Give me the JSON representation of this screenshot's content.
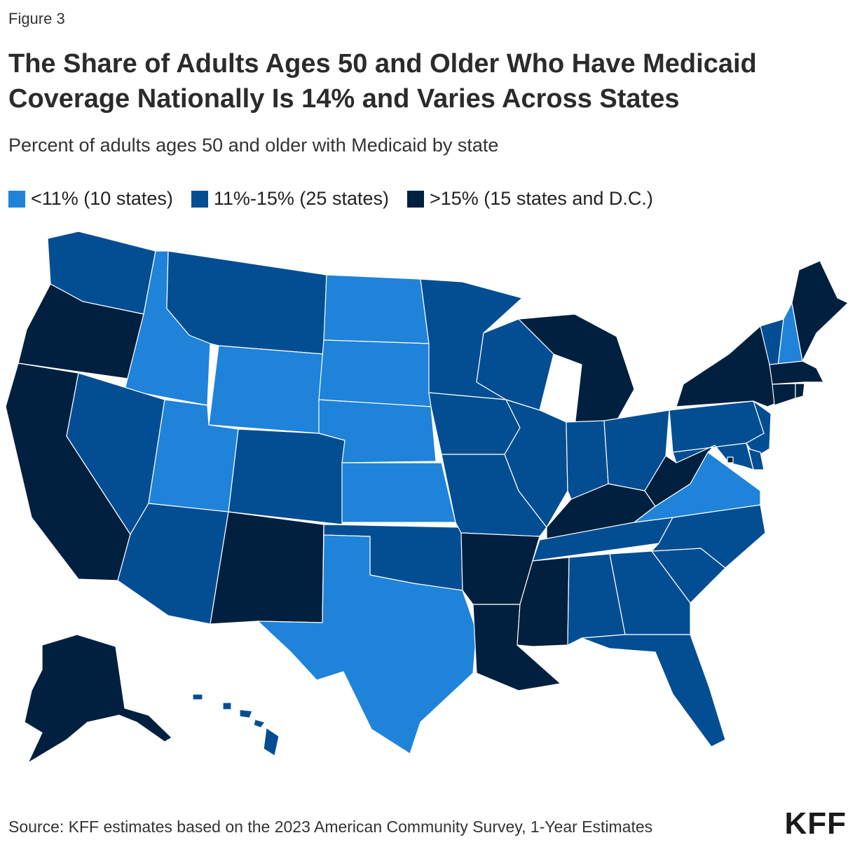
{
  "figure_label": "Figure 3",
  "title": "The Share of Adults Ages 50 and Older Who Have Medicaid Coverage Nationally Is 14% and Varies Across States",
  "subtitle": "Percent of adults ages 50 and older with Medicaid by state",
  "legend": [
    {
      "label": "<11% (10 states)",
      "color": "#1f83d9",
      "category": "low"
    },
    {
      "label": "11%-15% (25 states)",
      "color": "#034e93",
      "category": "mid"
    },
    {
      "label": ">15% (15 states and D.C.)",
      "color": "#01203f",
      "category": "high"
    }
  ],
  "colors": {
    "low": "#1f83d9",
    "mid": "#034e93",
    "high": "#01203f"
  },
  "states": {
    "WA": "mid",
    "OR": "high",
    "CA": "high",
    "ID": "low",
    "NV": "mid",
    "MT": "mid",
    "WY": "low",
    "UT": "low",
    "AZ": "mid",
    "CO": "mid",
    "NM": "high",
    "ND": "low",
    "SD": "low",
    "NE": "low",
    "KS": "low",
    "OK": "mid",
    "TX": "low",
    "MN": "mid",
    "IA": "mid",
    "MO": "mid",
    "AR": "high",
    "LA": "high",
    "WI": "mid",
    "IL": "mid",
    "MI": "high",
    "IN": "mid",
    "OH": "mid",
    "KY": "high",
    "TN": "mid",
    "MS": "high",
    "AL": "mid",
    "GA": "mid",
    "FL": "mid",
    "SC": "mid",
    "NC": "mid",
    "VA": "low",
    "WV": "high",
    "PA": "mid",
    "NY": "high",
    "VT": "mid",
    "NH": "low",
    "ME": "high",
    "MA": "high",
    "CT": "high",
    "RI": "high",
    "NJ": "mid",
    "DE": "mid",
    "MD": "mid",
    "DC": "high",
    "AK": "high",
    "HI": "mid"
  },
  "source": "Source: KFF estimates based on the 2023 American Community Survey, 1-Year Estimates",
  "logo_text": "KFF"
}
